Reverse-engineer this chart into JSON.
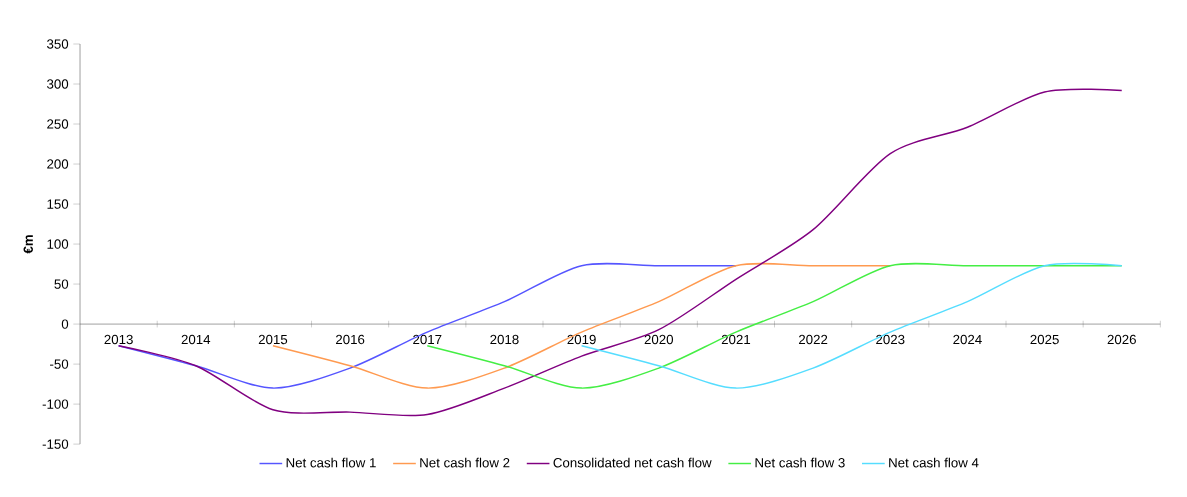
{
  "chart_data": {
    "type": "line",
    "ylabel": "€m",
    "categories": [
      "2013",
      "2014",
      "2015",
      "2016",
      "2017",
      "2018",
      "2019",
      "2020",
      "2021",
      "2022",
      "2023",
      "2024",
      "2025",
      "2026"
    ],
    "ylim": [
      -150,
      350
    ],
    "yticks": [
      -150,
      -100,
      -50,
      0,
      50,
      100,
      150,
      200,
      250,
      300,
      350
    ],
    "grid": false,
    "legend": "bottom",
    "marker": "none",
    "line_style": "solid",
    "series": [
      {
        "name": "Net cash flow 1",
        "color": "#5555ff",
        "values": [
          -27,
          -52,
          -80,
          -55,
          -10,
          28,
          73,
          73,
          73,
          null,
          null,
          null,
          null,
          null
        ]
      },
      {
        "name": "Net cash flow 2",
        "color": "#ff9a50",
        "values": [
          null,
          null,
          -27,
          -52,
          -80,
          -55,
          -10,
          28,
          73,
          73,
          73,
          null,
          null,
          null
        ]
      },
      {
        "name": "Consolidated net cash flow",
        "color": "#800080",
        "values": [
          -27,
          -52,
          -107,
          -110,
          -113,
          -80,
          -40,
          -7,
          56,
          118,
          213,
          246,
          290,
          292
        ]
      },
      {
        "name": "Net cash flow 3",
        "color": "#44ee44",
        "values": [
          null,
          null,
          null,
          null,
          -27,
          -52,
          -80,
          -55,
          -10,
          28,
          73,
          73,
          73,
          73
        ]
      },
      {
        "name": "Net cash flow 4",
        "color": "#55ddff",
        "values": [
          null,
          null,
          null,
          null,
          null,
          null,
          -27,
          -52,
          -80,
          -55,
          -10,
          28,
          73,
          73
        ]
      }
    ]
  }
}
